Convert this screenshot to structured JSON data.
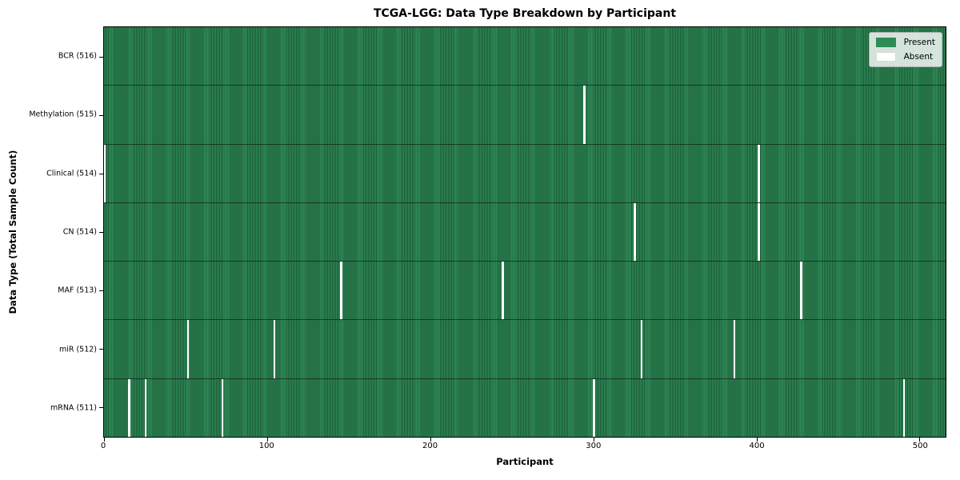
{
  "title": "TCGA-LGG: Data Type Breakdown by Participant",
  "xlabel": "Participant",
  "ylabel": "Data Type (Total Sample Count)",
  "colors": {
    "present": "#2e8b57",
    "present_dark": "#1d5937",
    "absent": "#ffffff",
    "row_separator": "rgba(0,0,0,0.5)",
    "axis": "#000000"
  },
  "chart_data": {
    "type": "heatmap",
    "title": "TCGA-LGG: Data Type Breakdown by Participant",
    "xlabel": "Participant",
    "ylabel": "Data Type (Total Sample Count)",
    "x_ticks": [
      0,
      100,
      200,
      300,
      400,
      500
    ],
    "x_max": 516,
    "n_participants": 516,
    "grid": false,
    "legend_position": "upper right",
    "legend_entries": [
      {
        "label": "Present",
        "color": "#2e8b57"
      },
      {
        "label": "Absent",
        "color": "#ffffff"
      }
    ],
    "rows": [
      {
        "label": "BCR (516)",
        "data_type": "BCR",
        "total": 516,
        "absent_participants": []
      },
      {
        "label": "Methylation (515)",
        "data_type": "Methylation",
        "total": 515,
        "absent_participants": [
          294
        ]
      },
      {
        "label": "Clinical (514)",
        "data_type": "Clinical",
        "total": 514,
        "absent_participants": [
          0,
          401
        ]
      },
      {
        "label": "CN (514)",
        "data_type": "CN",
        "total": 514,
        "absent_participants": [
          325,
          401
        ]
      },
      {
        "label": "MAF (513)",
        "data_type": "MAF",
        "total": 513,
        "absent_participants": [
          145,
          244,
          427
        ]
      },
      {
        "label": "miR (512)",
        "data_type": "miR",
        "total": 512,
        "absent_participants": [
          51,
          104,
          329,
          386
        ]
      },
      {
        "label": "mRNA (511)",
        "data_type": "mRNA",
        "total": 511,
        "absent_participants": [
          15,
          25,
          72,
          300,
          490
        ]
      }
    ]
  }
}
